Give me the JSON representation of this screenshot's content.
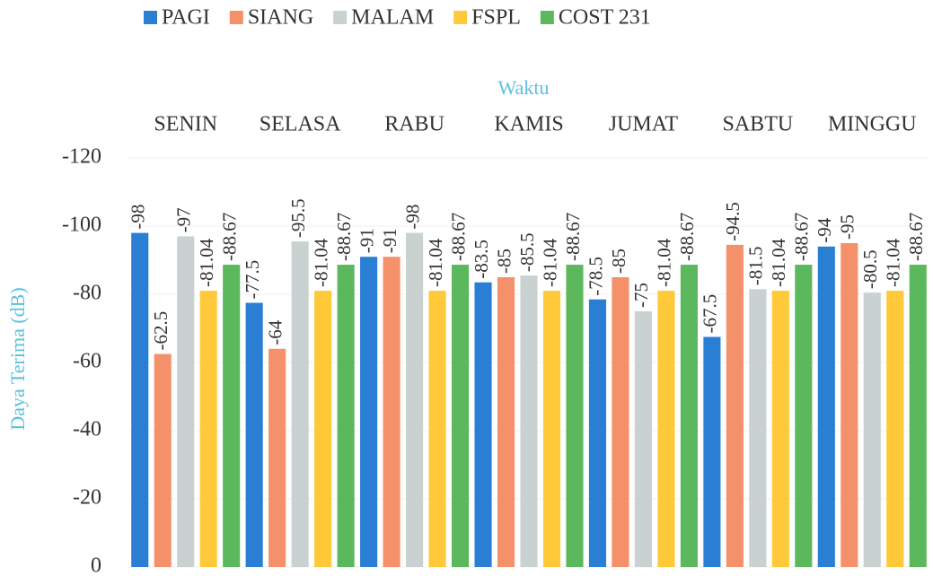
{
  "chart_data": {
    "type": "bar",
    "x_label": "Waktu",
    "y_label": "Daya Terima (dB)",
    "categories": [
      "SENIN",
      "SELASA",
      "RABU",
      "KAMIS",
      "JUMAT",
      "SABTU",
      "MINGGU"
    ],
    "series": [
      {
        "name": "PAGI",
        "color": "#2a7fd4",
        "values": [
          -98,
          -77.5,
          -91,
          -83.5,
          -78.5,
          -67.5,
          -94
        ]
      },
      {
        "name": "SIANG",
        "color": "#f4916a",
        "values": [
          -62.5,
          -64,
          -91,
          -85,
          -85,
          -94.5,
          -95
        ]
      },
      {
        "name": "MALAM",
        "color": "#c9d1d1",
        "values": [
          -97,
          -95.5,
          -98,
          -85.5,
          -75,
          -81.5,
          -80.5
        ]
      },
      {
        "name": "FSPL",
        "color": "#ffc93a",
        "values": [
          -81.04,
          -81.04,
          -81.04,
          -81.04,
          -81.04,
          -81.04,
          -81.04
        ]
      },
      {
        "name": "COST 231",
        "color": "#5cb85c",
        "values": [
          -88.67,
          -88.67,
          -88.67,
          -88.67,
          -88.67,
          -88.67,
          -88.67
        ]
      }
    ],
    "ylim": [
      0,
      -120
    ],
    "yticks": [
      0,
      -20,
      -40,
      -60,
      -80,
      -100,
      -120
    ],
    "grid": true,
    "legend": "top"
  }
}
